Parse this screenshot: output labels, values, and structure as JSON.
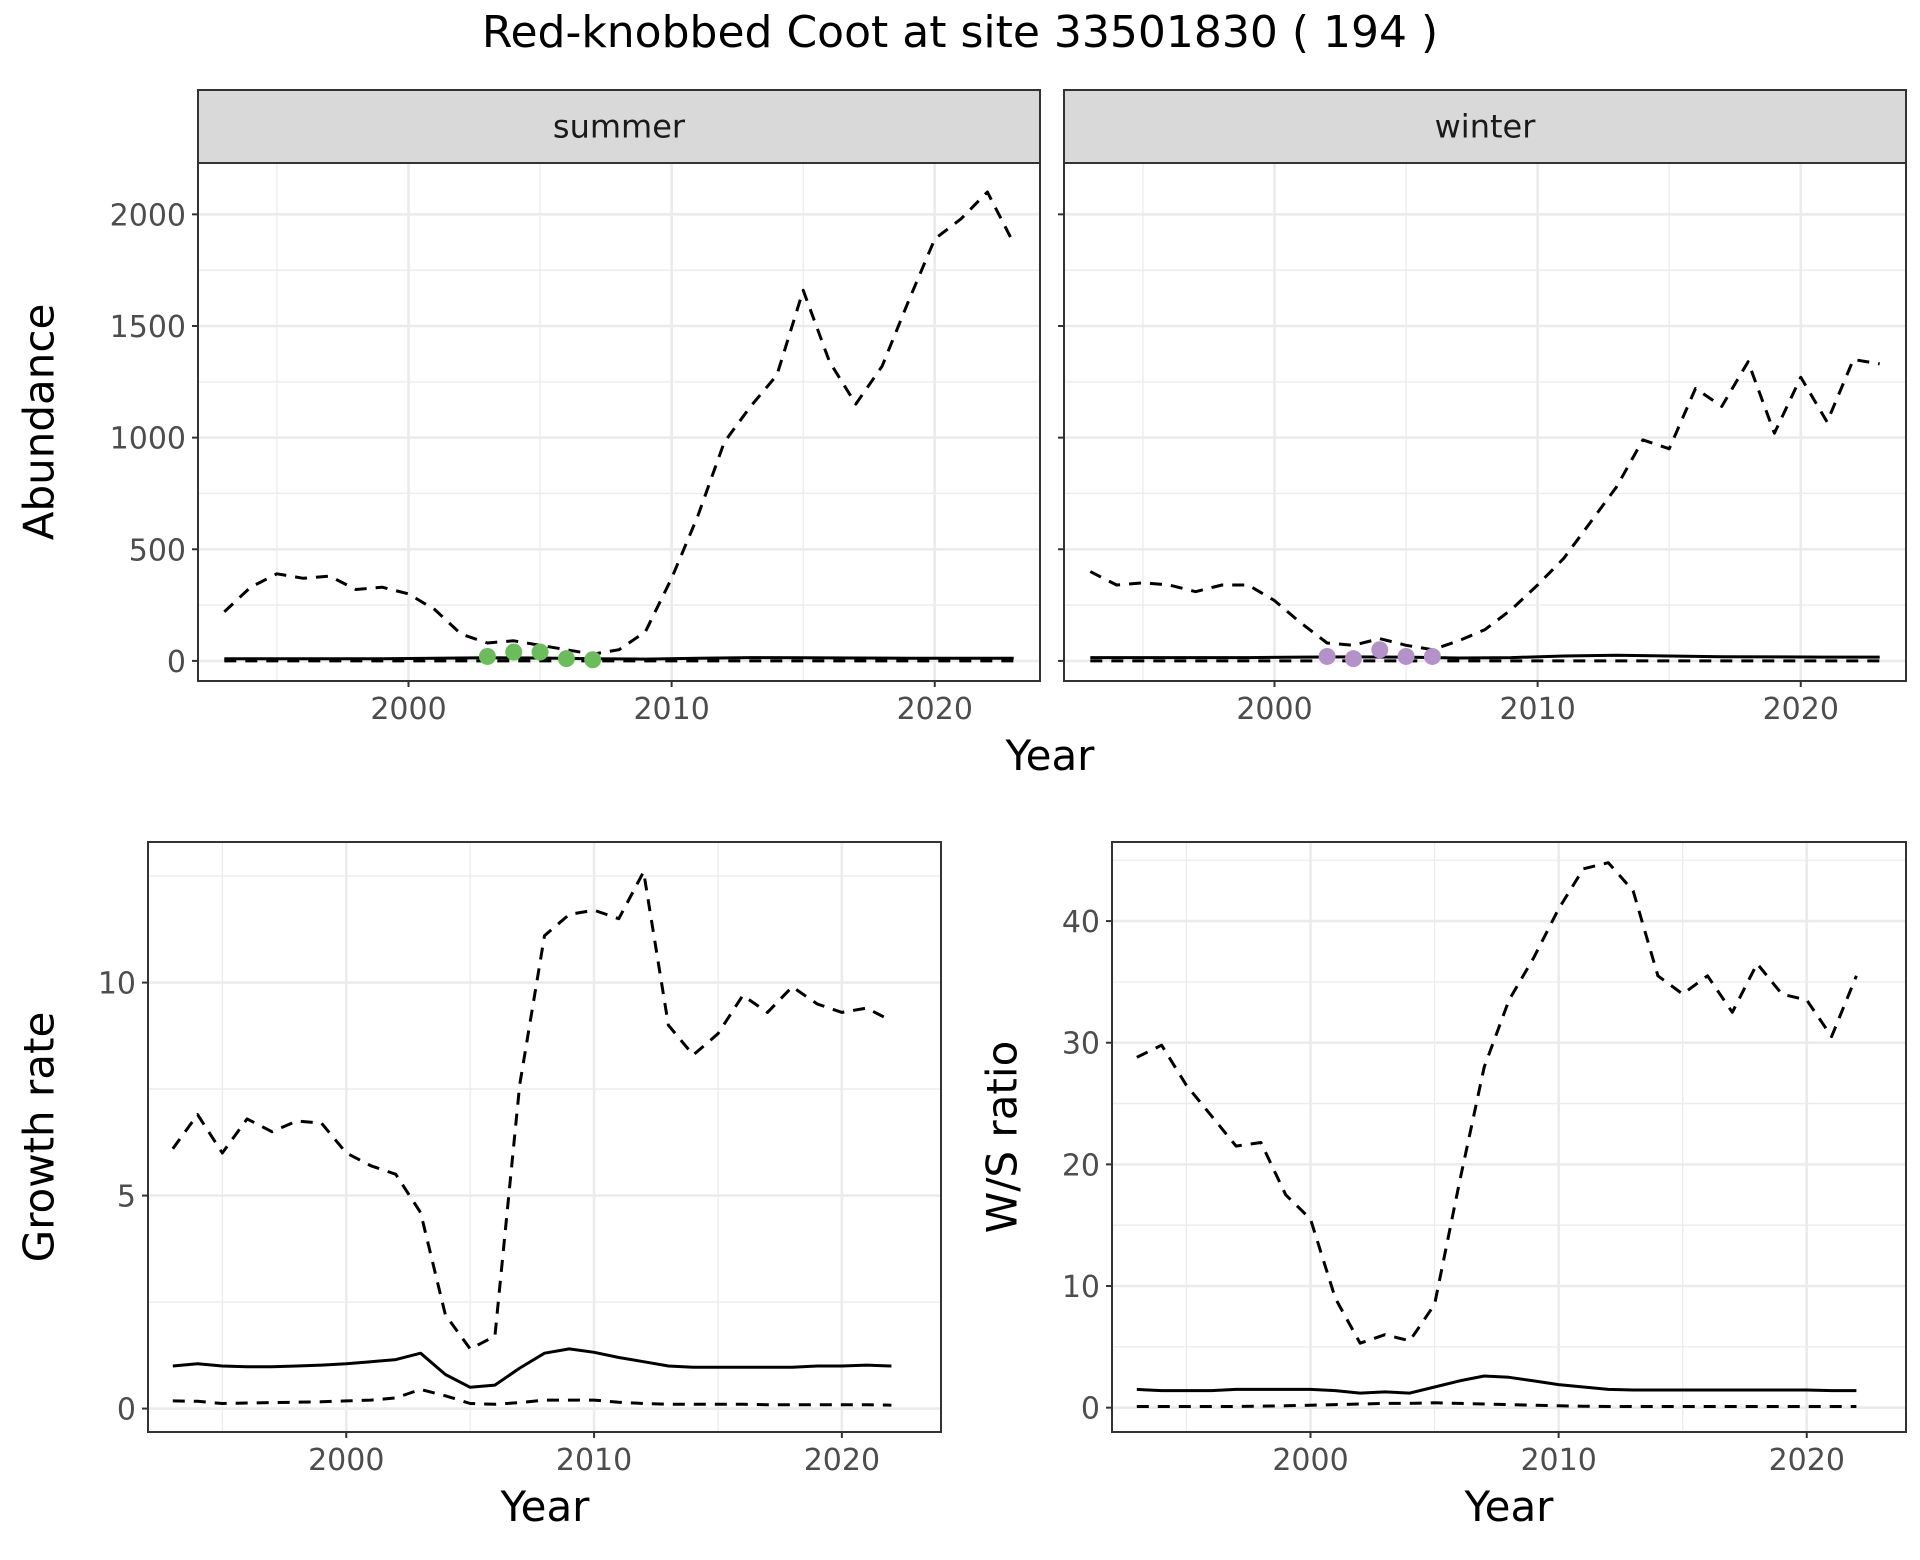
{
  "title": "Red-knobbed Coot at site 33501830 ( 194 )",
  "colors": {
    "summer_points": "#6ABD5A",
    "winter_points": "#B491C8",
    "strip_bg": "#D9D9D9",
    "grid": "#EBEBEB",
    "line": "#000000"
  },
  "chart_data": [
    {
      "id": "abundance-summer",
      "type": "line",
      "facet": "summer",
      "ylabel": "Abundance",
      "xlabel": "Year",
      "xlim": [
        1992,
        2024
      ],
      "ylim": [
        -90,
        2230
      ],
      "xticks": [
        2000,
        2010,
        2020
      ],
      "yticks": [
        0,
        500,
        1000,
        1500,
        2000
      ],
      "grid": true,
      "series": [
        {
          "style": "solid",
          "x": [
            1993,
            1995,
            1997,
            1999,
            2001,
            2003,
            2005,
            2007,
            2009,
            2011,
            2013,
            2015,
            2017,
            2019,
            2021,
            2023
          ],
          "y": [
            10,
            10,
            10,
            10,
            12,
            14,
            13,
            10,
            8,
            12,
            15,
            14,
            13,
            12,
            12,
            12
          ]
        },
        {
          "style": "dashed",
          "x": [
            1993,
            1995,
            1997,
            1999,
            2001,
            2003,
            2005,
            2007,
            2009,
            2011,
            2013,
            2015,
            2017,
            2019,
            2021,
            2023
          ],
          "y": [
            0,
            0,
            0,
            0,
            0,
            0,
            0,
            0,
            0,
            0,
            0,
            0,
            0,
            0,
            0,
            0
          ]
        },
        {
          "style": "dashed",
          "x": [
            1993,
            1994,
            1995,
            1996,
            1997,
            1998,
            1999,
            2000,
            2001,
            2002,
            2003,
            2004,
            2005,
            2006,
            2007,
            2008,
            2009,
            2010,
            2011,
            2012,
            2013,
            2014,
            2015,
            2016,
            2017,
            2018,
            2019,
            2020,
            2021,
            2022,
            2023
          ],
          "y": [
            220,
            330,
            390,
            370,
            380,
            320,
            330,
            300,
            230,
            120,
            80,
            90,
            70,
            50,
            30,
            50,
            130,
            370,
            650,
            980,
            1140,
            1280,
            1660,
            1340,
            1150,
            1320,
            1610,
            1890,
            1980,
            2100,
            1870
          ]
        }
      ],
      "points": {
        "x": [
          2003,
          2004,
          2005,
          2006,
          2007
        ],
        "y": [
          20,
          40,
          40,
          10,
          5
        ]
      }
    },
    {
      "id": "abundance-winter",
      "type": "line",
      "facet": "winter",
      "xlabel": "Year",
      "xlim": [
        1992,
        2024
      ],
      "ylim": [
        -90,
        2230
      ],
      "xticks": [
        2000,
        2010,
        2020
      ],
      "yticks": [
        0,
        500,
        1000,
        1500,
        2000
      ],
      "grid": true,
      "series": [
        {
          "style": "solid",
          "x": [
            1993,
            1995,
            1997,
            1999,
            2001,
            2003,
            2005,
            2007,
            2009,
            2011,
            2013,
            2015,
            2017,
            2019,
            2021,
            2023
          ],
          "y": [
            15,
            15,
            15,
            15,
            17,
            18,
            17,
            13,
            15,
            22,
            25,
            22,
            19,
            18,
            17,
            17
          ]
        },
        {
          "style": "dashed",
          "x": [
            1993,
            1995,
            1997,
            1999,
            2001,
            2003,
            2005,
            2007,
            2009,
            2011,
            2013,
            2015,
            2017,
            2019,
            2021,
            2023
          ],
          "y": [
            0,
            0,
            0,
            0,
            0,
            0,
            0,
            0,
            0,
            0,
            0,
            0,
            0,
            0,
            0,
            0
          ]
        },
        {
          "style": "dashed",
          "x": [
            1993,
            1994,
            1995,
            1996,
            1997,
            1998,
            1999,
            2000,
            2001,
            2002,
            2003,
            2004,
            2005,
            2006,
            2007,
            2008,
            2009,
            2010,
            2011,
            2012,
            2013,
            2014,
            2015,
            2016,
            2017,
            2018,
            2019,
            2020,
            2021,
            2022,
            2023
          ],
          "y": [
            400,
            340,
            350,
            340,
            310,
            340,
            340,
            270,
            170,
            80,
            70,
            100,
            70,
            50,
            90,
            140,
            230,
            340,
            460,
            620,
            780,
            990,
            950,
            1220,
            1140,
            1340,
            1020,
            1270,
            1070,
            1350,
            1330
          ]
        }
      ],
      "points": {
        "x": [
          2002,
          2003,
          2004,
          2005,
          2006
        ],
        "y": [
          20,
          10,
          50,
          20,
          20
        ]
      }
    },
    {
      "id": "growth-rate",
      "type": "line",
      "ylabel": "Growth rate",
      "xlabel": "Year",
      "xlim": [
        1992,
        2024
      ],
      "ylim": [
        -0.55,
        13.3
      ],
      "xticks": [
        2000,
        2010,
        2020
      ],
      "yticks": [
        0,
        5,
        10
      ],
      "grid": true,
      "series": [
        {
          "style": "solid",
          "x": [
            1993,
            1994,
            1995,
            1996,
            1997,
            1998,
            1999,
            2000,
            2001,
            2002,
            2003,
            2004,
            2005,
            2006,
            2007,
            2008,
            2009,
            2010,
            2011,
            2012,
            2013,
            2014,
            2015,
            2016,
            2017,
            2018,
            2019,
            2020,
            2021,
            2022
          ],
          "y": [
            1.0,
            1.05,
            1.0,
            0.98,
            0.98,
            1.0,
            1.02,
            1.05,
            1.1,
            1.15,
            1.3,
            0.8,
            0.5,
            0.55,
            0.95,
            1.3,
            1.4,
            1.32,
            1.2,
            1.1,
            1.0,
            0.97,
            0.97,
            0.97,
            0.97,
            0.97,
            1.0,
            1.0,
            1.02,
            1.0
          ]
        },
        {
          "style": "dashed",
          "x": [
            1993,
            1994,
            1995,
            1996,
            1997,
            1998,
            1999,
            2000,
            2001,
            2002,
            2003,
            2004,
            2005,
            2006,
            2007,
            2008,
            2009,
            2010,
            2011,
            2012,
            2013,
            2014,
            2015,
            2016,
            2017,
            2018,
            2019,
            2020,
            2021,
            2022
          ],
          "y": [
            0.18,
            0.17,
            0.12,
            0.13,
            0.14,
            0.15,
            0.16,
            0.18,
            0.2,
            0.25,
            0.45,
            0.3,
            0.12,
            0.1,
            0.14,
            0.2,
            0.2,
            0.2,
            0.15,
            0.12,
            0.1,
            0.1,
            0.1,
            0.1,
            0.09,
            0.09,
            0.09,
            0.09,
            0.09,
            0.08
          ]
        },
        {
          "style": "dashed",
          "x": [
            1993,
            1994,
            1995,
            1996,
            1997,
            1998,
            1999,
            2000,
            2001,
            2002,
            2003,
            2004,
            2005,
            2006,
            2007,
            2008,
            2009,
            2010,
            2011,
            2012,
            2013,
            2014,
            2015,
            2016,
            2017,
            2018,
            2019,
            2020,
            2021,
            2022
          ],
          "y": [
            6.1,
            6.9,
            6.0,
            6.8,
            6.5,
            6.75,
            6.7,
            6.0,
            5.7,
            5.5,
            4.6,
            2.2,
            1.4,
            1.7,
            7.6,
            11.1,
            11.6,
            11.7,
            11.5,
            12.6,
            9.0,
            8.3,
            8.8,
            9.7,
            9.3,
            9.9,
            9.5,
            9.3,
            9.4,
            9.1
          ]
        }
      ]
    },
    {
      "id": "ws-ratio",
      "type": "line",
      "ylabel": "W/S ratio",
      "xlabel": "Year",
      "xlim": [
        1992,
        2024
      ],
      "ylim": [
        -2,
        46.5
      ],
      "xticks": [
        2000,
        2010,
        2020
      ],
      "yticks": [
        0,
        10,
        20,
        30,
        40
      ],
      "grid": true,
      "series": [
        {
          "style": "solid",
          "x": [
            1993,
            1994,
            1995,
            1996,
            1997,
            1998,
            1999,
            2000,
            2001,
            2002,
            2003,
            2004,
            2005,
            2006,
            2007,
            2008,
            2009,
            2010,
            2011,
            2012,
            2013,
            2014,
            2015,
            2016,
            2017,
            2018,
            2019,
            2020,
            2021,
            2022
          ],
          "y": [
            1.5,
            1.4,
            1.4,
            1.4,
            1.5,
            1.5,
            1.5,
            1.5,
            1.4,
            1.2,
            1.3,
            1.2,
            1.7,
            2.2,
            2.6,
            2.5,
            2.2,
            1.9,
            1.7,
            1.5,
            1.45,
            1.45,
            1.45,
            1.45,
            1.45,
            1.45,
            1.45,
            1.45,
            1.4,
            1.4
          ]
        },
        {
          "style": "dashed",
          "x": [
            1993,
            1994,
            1995,
            1996,
            1997,
            1998,
            1999,
            2000,
            2001,
            2002,
            2003,
            2004,
            2005,
            2006,
            2007,
            2008,
            2009,
            2010,
            2011,
            2012,
            2013,
            2014,
            2015,
            2016,
            2017,
            2018,
            2019,
            2020,
            2021,
            2022
          ],
          "y": [
            0.1,
            0.1,
            0.1,
            0.1,
            0.1,
            0.12,
            0.15,
            0.2,
            0.25,
            0.3,
            0.35,
            0.35,
            0.4,
            0.35,
            0.3,
            0.25,
            0.2,
            0.15,
            0.12,
            0.1,
            0.1,
            0.1,
            0.1,
            0.1,
            0.1,
            0.1,
            0.1,
            0.1,
            0.1,
            0.1
          ]
        },
        {
          "style": "dashed",
          "x": [
            1993,
            1994,
            1995,
            1996,
            1997,
            1998,
            1999,
            2000,
            2001,
            2002,
            2003,
            2004,
            2005,
            2006,
            2007,
            2008,
            2009,
            2010,
            2011,
            2012,
            2013,
            2014,
            2015,
            2016,
            2017,
            2018,
            2019,
            2020,
            2021,
            2022
          ],
          "y": [
            28.8,
            29.8,
            26.5,
            24.0,
            21.5,
            21.8,
            17.5,
            15.5,
            9.0,
            5.3,
            6.0,
            5.5,
            8.5,
            18.5,
            28.0,
            33.5,
            37.0,
            41.0,
            44.3,
            44.8,
            42.5,
            35.5,
            34.0,
            35.5,
            32.5,
            36.5,
            34.0,
            33.5,
            30.5,
            35.5
          ]
        }
      ]
    }
  ]
}
